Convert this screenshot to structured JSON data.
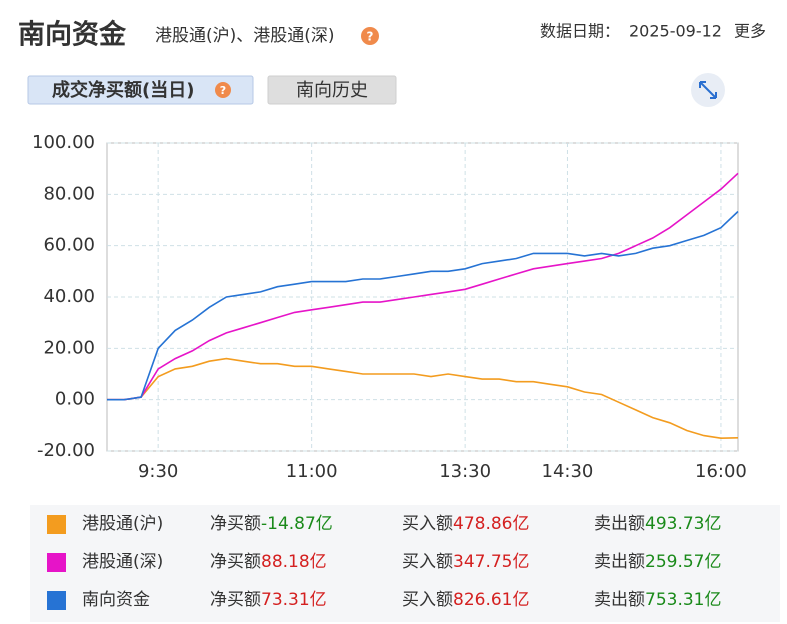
{
  "header": {
    "title": "南向资金",
    "subtitle": "港股通(沪)、港股通(深)",
    "help": "?",
    "date_label": "数据日期：",
    "date": "2025-09-12",
    "more": "更多"
  },
  "tabs": [
    {
      "label": "成交净买额(当日)",
      "help": "?",
      "active": true
    },
    {
      "label": "南向历史",
      "active": false
    }
  ],
  "chart_data": {
    "type": "line",
    "categories": [
      null,
      null,
      null,
      "9:30",
      null,
      null,
      null,
      null,
      null,
      null,
      null,
      null,
      "11:00",
      null,
      null,
      null,
      null,
      null,
      null,
      null,
      null,
      "13:30",
      null,
      null,
      null,
      null,
      null,
      "14:30",
      null,
      null,
      null,
      null,
      null,
      null,
      null,
      null,
      "16:00",
      null
    ],
    "ylim": [
      -20,
      100
    ],
    "yticks": [
      {
        "value": -20,
        "label": "-20.00"
      },
      {
        "value": 0,
        "label": "0.00"
      },
      {
        "value": 20,
        "label": "20.00"
      },
      {
        "value": 40,
        "label": "40.00"
      },
      {
        "value": 60,
        "label": "60.00"
      },
      {
        "value": 80,
        "label": "80.00"
      },
      {
        "value": 100,
        "label": "100.00"
      }
    ],
    "grid": true,
    "series": [
      {
        "name": "港股通(沪)",
        "color": "#f39c1f",
        "values": [
          0,
          0,
          1,
          9,
          12,
          13,
          15,
          16,
          15,
          14,
          14,
          13,
          13,
          12,
          11,
          10,
          10,
          10,
          10,
          9,
          10,
          9,
          8,
          8,
          7,
          7,
          6,
          5,
          3,
          2,
          -1,
          -4,
          -7,
          -9,
          -12,
          -14,
          -15,
          -14.87
        ],
        "stats": [
          {
            "label": "净买额",
            "value": "-14.87亿",
            "color": "#1a8a1a"
          },
          {
            "label": "买入额",
            "value": "478.86亿",
            "color": "#d42020"
          },
          {
            "label": "卖出额",
            "value": "493.73亿",
            "color": "#1a8a1a"
          }
        ]
      },
      {
        "name": "港股通(深)",
        "color": "#e614c8",
        "values": [
          0,
          0,
          1,
          12,
          16,
          19,
          23,
          26,
          28,
          30,
          32,
          34,
          35,
          36,
          37,
          38,
          38,
          39,
          40,
          41,
          42,
          43,
          45,
          47,
          49,
          51,
          52,
          53,
          54,
          55,
          57,
          60,
          63,
          67,
          72,
          77,
          82,
          88.18
        ],
        "stats": [
          {
            "label": "净买额",
            "value": "88.18亿",
            "color": "#d42020"
          },
          {
            "label": "买入额",
            "value": "347.75亿",
            "color": "#d42020"
          },
          {
            "label": "卖出额",
            "value": "259.57亿",
            "color": "#1a8a1a"
          }
        ]
      },
      {
        "name": "南向资金",
        "color": "#2673d4",
        "values": [
          0,
          0,
          1,
          20,
          27,
          31,
          36,
          40,
          41,
          42,
          44,
          45,
          46,
          46,
          46,
          47,
          47,
          48,
          49,
          50,
          50,
          51,
          53,
          54,
          55,
          57,
          57,
          57,
          56,
          57,
          56,
          57,
          59,
          60,
          62,
          64,
          67,
          73.31
        ],
        "stats": [
          {
            "label": "净买额",
            "value": "73.31亿",
            "color": "#d42020"
          },
          {
            "label": "买入额",
            "value": "826.61亿",
            "color": "#d42020"
          },
          {
            "label": "卖出额",
            "value": "753.31亿",
            "color": "#1a8a1a"
          }
        ]
      }
    ]
  }
}
